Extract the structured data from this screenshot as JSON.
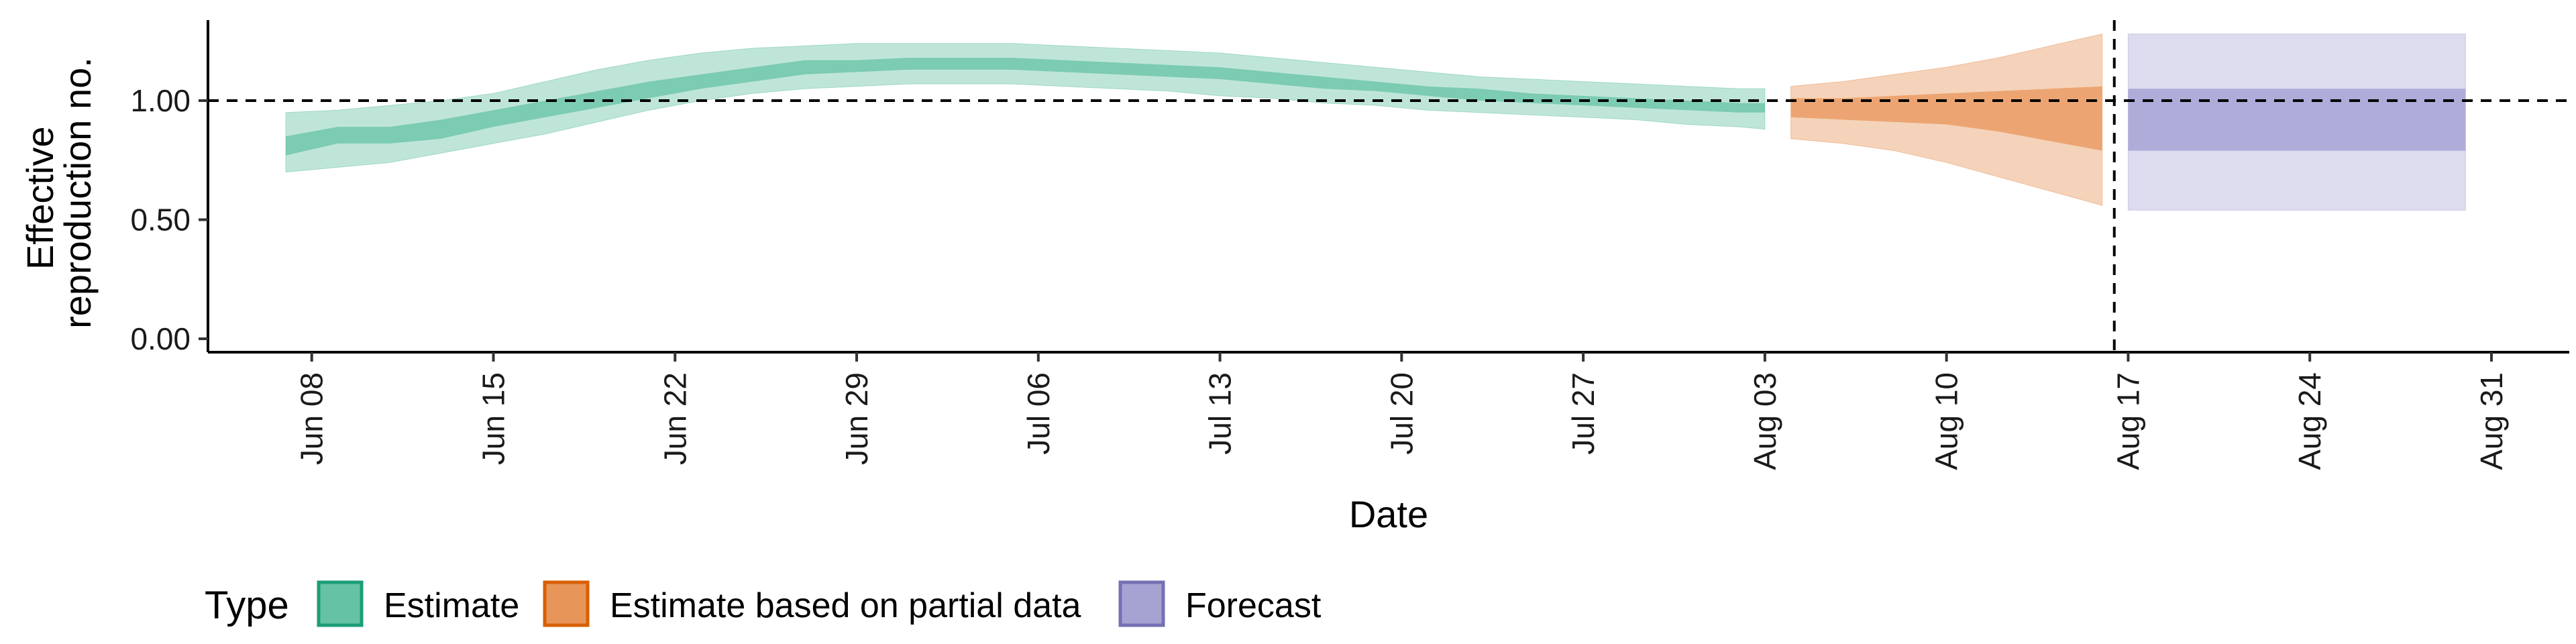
{
  "chart_data": {
    "type": "area",
    "xlabel": "Date",
    "ylabel_lines": [
      "Effective",
      "reproduction no."
    ],
    "y_ticks": [
      0.0,
      0.5,
      1.0
    ],
    "y_tick_labels": [
      "0.00",
      "0.50",
      "1.00"
    ],
    "ylim": [
      0,
      1.33
    ],
    "x_range": [
      "2020-06-04",
      "2020-09-03"
    ],
    "x_ticks": [
      "2020-06-08",
      "2020-06-15",
      "2020-06-22",
      "2020-06-29",
      "2020-07-06",
      "2020-07-13",
      "2020-07-20",
      "2020-07-27",
      "2020-08-03",
      "2020-08-10",
      "2020-08-17",
      "2020-08-24",
      "2020-08-31"
    ],
    "x_tick_labels": [
      "Jun 08",
      "Jun 15",
      "Jun 22",
      "Jun 29",
      "Jul 06",
      "Jul 13",
      "Jul 20",
      "Jul 27",
      "Aug 03",
      "Aug 10",
      "Aug 17",
      "Aug 24",
      "Aug 31"
    ],
    "reference_line_y": 1.0,
    "forecast_start_date": "2020-08-16",
    "grid": false,
    "legend": {
      "title": "Type",
      "placement": "bottom",
      "entries": [
        {
          "label": "Estimate",
          "fill": "#66c2a5",
          "border": "#1b9e77"
        },
        {
          "label": "Estimate based on partial data",
          "fill": "#e8955a",
          "border": "#d95f02"
        },
        {
          "label": "Forecast",
          "fill": "#a6a3d3",
          "border": "#7570b3"
        }
      ]
    },
    "series": [
      {
        "name": "Estimate",
        "color": "#66c2a5",
        "x": [
          "2020-06-07",
          "2020-06-09",
          "2020-06-11",
          "2020-06-13",
          "2020-06-15",
          "2020-06-17",
          "2020-06-19",
          "2020-06-21",
          "2020-06-23",
          "2020-06-25",
          "2020-06-27",
          "2020-06-29",
          "2020-07-01",
          "2020-07-03",
          "2020-07-05",
          "2020-07-07",
          "2020-07-09",
          "2020-07-11",
          "2020-07-13",
          "2020-07-15",
          "2020-07-17",
          "2020-07-19",
          "2020-07-21",
          "2020-07-23",
          "2020-07-25",
          "2020-07-27",
          "2020-07-29",
          "2020-07-31",
          "2020-08-02",
          "2020-08-03"
        ],
        "lower90": [
          0.7,
          0.72,
          0.74,
          0.78,
          0.82,
          0.86,
          0.91,
          0.96,
          1.0,
          1.03,
          1.05,
          1.06,
          1.07,
          1.07,
          1.07,
          1.06,
          1.05,
          1.04,
          1.02,
          1.01,
          0.99,
          0.98,
          0.96,
          0.95,
          0.94,
          0.93,
          0.92,
          0.9,
          0.89,
          0.88
        ],
        "upper90": [
          0.95,
          0.96,
          0.98,
          1.0,
          1.03,
          1.08,
          1.13,
          1.17,
          1.2,
          1.22,
          1.23,
          1.24,
          1.24,
          1.24,
          1.24,
          1.23,
          1.22,
          1.21,
          1.2,
          1.18,
          1.16,
          1.14,
          1.12,
          1.1,
          1.09,
          1.08,
          1.07,
          1.06,
          1.05,
          1.05
        ],
        "lower50": [
          0.77,
          0.82,
          0.82,
          0.84,
          0.89,
          0.93,
          0.97,
          1.01,
          1.05,
          1.08,
          1.11,
          1.12,
          1.13,
          1.13,
          1.13,
          1.12,
          1.11,
          1.1,
          1.09,
          1.07,
          1.05,
          1.04,
          1.02,
          1.0,
          0.99,
          0.98,
          0.97,
          0.96,
          0.95,
          0.95
        ],
        "upper50": [
          0.85,
          0.89,
          0.89,
          0.92,
          0.96,
          1.0,
          1.04,
          1.08,
          1.11,
          1.14,
          1.17,
          1.17,
          1.18,
          1.18,
          1.18,
          1.17,
          1.16,
          1.15,
          1.14,
          1.12,
          1.1,
          1.08,
          1.06,
          1.05,
          1.03,
          1.02,
          1.01,
          1.0,
          0.99,
          0.99
        ]
      },
      {
        "name": "Estimate based on partial data",
        "color": "#e8955a",
        "x": [
          "2020-08-04",
          "2020-08-06",
          "2020-08-08",
          "2020-08-10",
          "2020-08-12",
          "2020-08-14",
          "2020-08-16"
        ],
        "lower90": [
          0.84,
          0.82,
          0.79,
          0.74,
          0.68,
          0.62,
          0.56
        ],
        "upper90": [
          1.06,
          1.08,
          1.11,
          1.14,
          1.18,
          1.23,
          1.28
        ],
        "lower50": [
          0.93,
          0.92,
          0.91,
          0.9,
          0.87,
          0.83,
          0.79
        ],
        "upper50": [
          1.01,
          1.01,
          1.02,
          1.03,
          1.04,
          1.05,
          1.06
        ]
      },
      {
        "name": "Forecast",
        "color": "#a6a3d3",
        "x": [
          "2020-08-17",
          "2020-08-30"
        ],
        "lower90": [
          0.54,
          0.54
        ],
        "upper90": [
          1.28,
          1.28
        ],
        "lower50": [
          0.79,
          0.79
        ],
        "upper50": [
          1.05,
          1.05
        ]
      }
    ]
  }
}
